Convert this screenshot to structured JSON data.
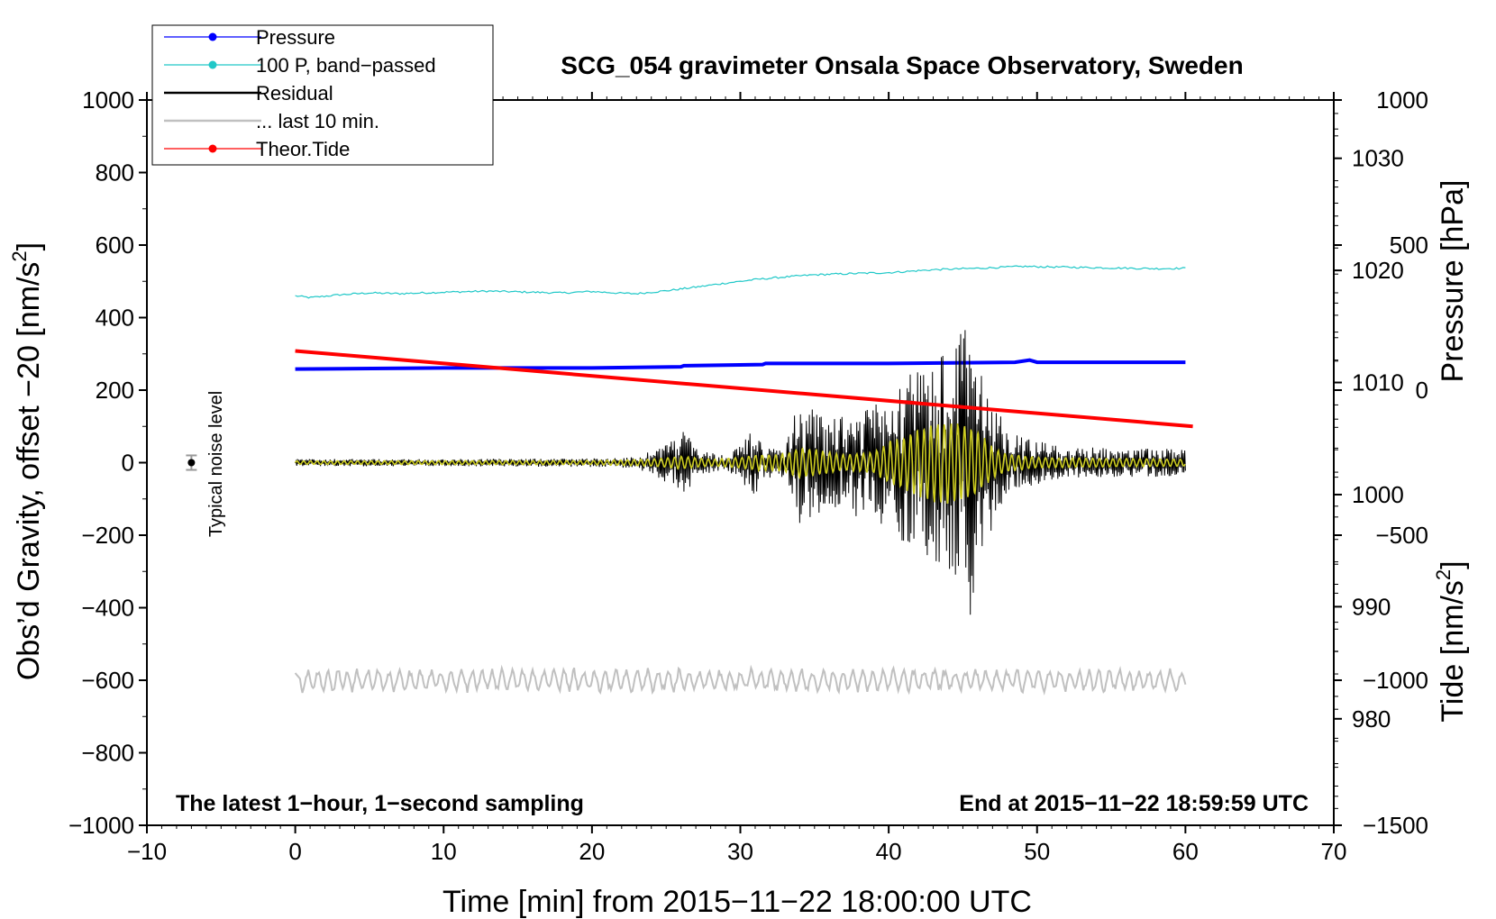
{
  "chart_data": {
    "type": "line",
    "title": "SCG_054 gravimeter Onsala Space Observatory, Sweden",
    "xlabel": "Time [min] from 2015−11−22 18:00:00 UTC",
    "ylabel": "Obs’d Gravity, offset −20 [nm/s",
    "ylabel_sup": "2",
    "ylabel_end": "]",
    "y2label": "Pressure [hPa]",
    "y3label": "Tide [nm/s",
    "y3label_sup": "2",
    "y3label_end": "]",
    "xlim": [
      -10,
      70
    ],
    "ylim": [
      -1000,
      1000
    ],
    "pressure_axis_range": [
      970.5,
      1035.2
    ],
    "tide_axis_range": [
      -1500,
      1000
    ],
    "xticks": [
      -10,
      0,
      10,
      20,
      30,
      40,
      50,
      60,
      70
    ],
    "xtick_labels": [
      "−10",
      "0",
      "10",
      "20",
      "30",
      "40",
      "50",
      "60",
      "70"
    ],
    "yticks": [
      1000,
      800,
      600,
      400,
      200,
      0,
      -200,
      -400,
      -600,
      -800,
      -1000
    ],
    "ytick_labels": [
      "1000",
      "800",
      "600",
      "400",
      "200",
      "0",
      "−200",
      "−400",
      "−600",
      "−800",
      "−1000"
    ],
    "pressure_ticks": [
      1030,
      1020,
      1010,
      1000,
      990,
      980
    ],
    "pressure_tick_labels": [
      "1030",
      "1020",
      "1010",
      "1000",
      "990",
      "980"
    ],
    "tide_ticks": [
      1000,
      500,
      0,
      -500,
      -1000,
      -1500
    ],
    "tide_tick_labels": [
      "1000",
      "500",
      "0",
      "−500",
      "−1000",
      "−1500"
    ],
    "legend": {
      "placement": "top-left",
      "entries": [
        {
          "label": "Pressure",
          "color": "#0000ff",
          "marker": true
        },
        {
          "label": "100 P, band−passed",
          "color": "#20c8c8",
          "marker": true
        },
        {
          "label": "Residual",
          "color": "#000000",
          "marker": false
        },
        {
          "label": "... last 10 min.",
          "color": "#c0c0c0",
          "marker": false
        },
        {
          "label": "Theor.Tide",
          "color": "#ff0000",
          "marker": true
        }
      ]
    },
    "annotations": {
      "bottom_left": "The latest 1−hour, 1−second sampling",
      "bottom_right": "End at 2015−11−22 18:59:59 UTC",
      "noise_label": "Typical noise level",
      "noise_marker": {
        "x": -7,
        "y": 0,
        "error": 20
      }
    },
    "series": [
      {
        "name": "Pressure",
        "axis": "pressure_hPa",
        "color": "#0000ff",
        "x": [
          0,
          10,
          20,
          26,
          26.2,
          31.5,
          31.7,
          40,
          48.5,
          49.5,
          50,
          55,
          60
        ],
        "y": [
          1011.2,
          1011.3,
          1011.3,
          1011.4,
          1011.5,
          1011.6,
          1011.7,
          1011.7,
          1011.8,
          1012.0,
          1011.8,
          1011.8,
          1011.8
        ]
      },
      {
        "name": "100 P, band−passed",
        "color": "#20c8c8",
        "x": [
          0,
          1,
          3,
          5,
          7,
          10,
          13,
          16,
          18,
          20,
          22,
          23,
          25,
          27,
          29,
          31,
          33,
          35,
          38,
          40,
          43,
          46,
          49,
          52,
          55,
          58,
          60
        ],
        "y": [
          460,
          455,
          463,
          468,
          466,
          470,
          473,
          470,
          468,
          472,
          467,
          466,
          474,
          484,
          495,
          505,
          512,
          518,
          522,
          524,
          532,
          536,
          541,
          539,
          537,
          535,
          536
        ]
      },
      {
        "name": "Residual",
        "color": "#000000",
        "x": [
          0,
          10,
          20,
          23,
          24.5,
          25.5,
          26.3,
          27,
          29,
          30,
          30.9,
          31.5,
          33,
          34,
          34.5,
          35,
          36,
          37,
          38,
          39,
          40,
          41,
          42,
          43,
          43.5,
          44,
          44.5,
          45,
          45.5,
          46,
          47,
          48,
          49,
          50,
          52,
          55,
          58,
          60
        ],
        "amplitude": [
          10,
          10,
          12,
          15,
          45,
          70,
          95,
          40,
          20,
          45,
          100,
          45,
          40,
          180,
          160,
          150,
          130,
          140,
          150,
          170,
          200,
          240,
          250,
          260,
          300,
          310,
          320,
          420,
          440,
          320,
          180,
          90,
          70,
          60,
          45,
          40,
          40,
          35
        ]
      },
      {
        "name": "Residual (band−passed, yellow)",
        "color": "#cccc20",
        "x": [
          0,
          20,
          24,
          26,
          28,
          30,
          31,
          33,
          34,
          35,
          37,
          39,
          40,
          41,
          42,
          43,
          44,
          45,
          46,
          47,
          48,
          50,
          55,
          60
        ],
        "amplitude": [
          5,
          6,
          10,
          18,
          10,
          15,
          22,
          25,
          45,
          38,
          22,
          30,
          60,
          75,
          95,
          110,
          120,
          115,
          90,
          45,
          25,
          15,
          12,
          10
        ]
      },
      {
        "name": "... last 10 min.",
        "color": "#c0c0c0",
        "center": -600,
        "amplitude": 35,
        "x": [
          0,
          60
        ]
      },
      {
        "name": "Theor.Tide",
        "axis": "tide_nm_s2",
        "color": "#ff0000",
        "x": [
          0,
          60.5
        ],
        "y": [
          135,
          -125
        ]
      }
    ]
  }
}
